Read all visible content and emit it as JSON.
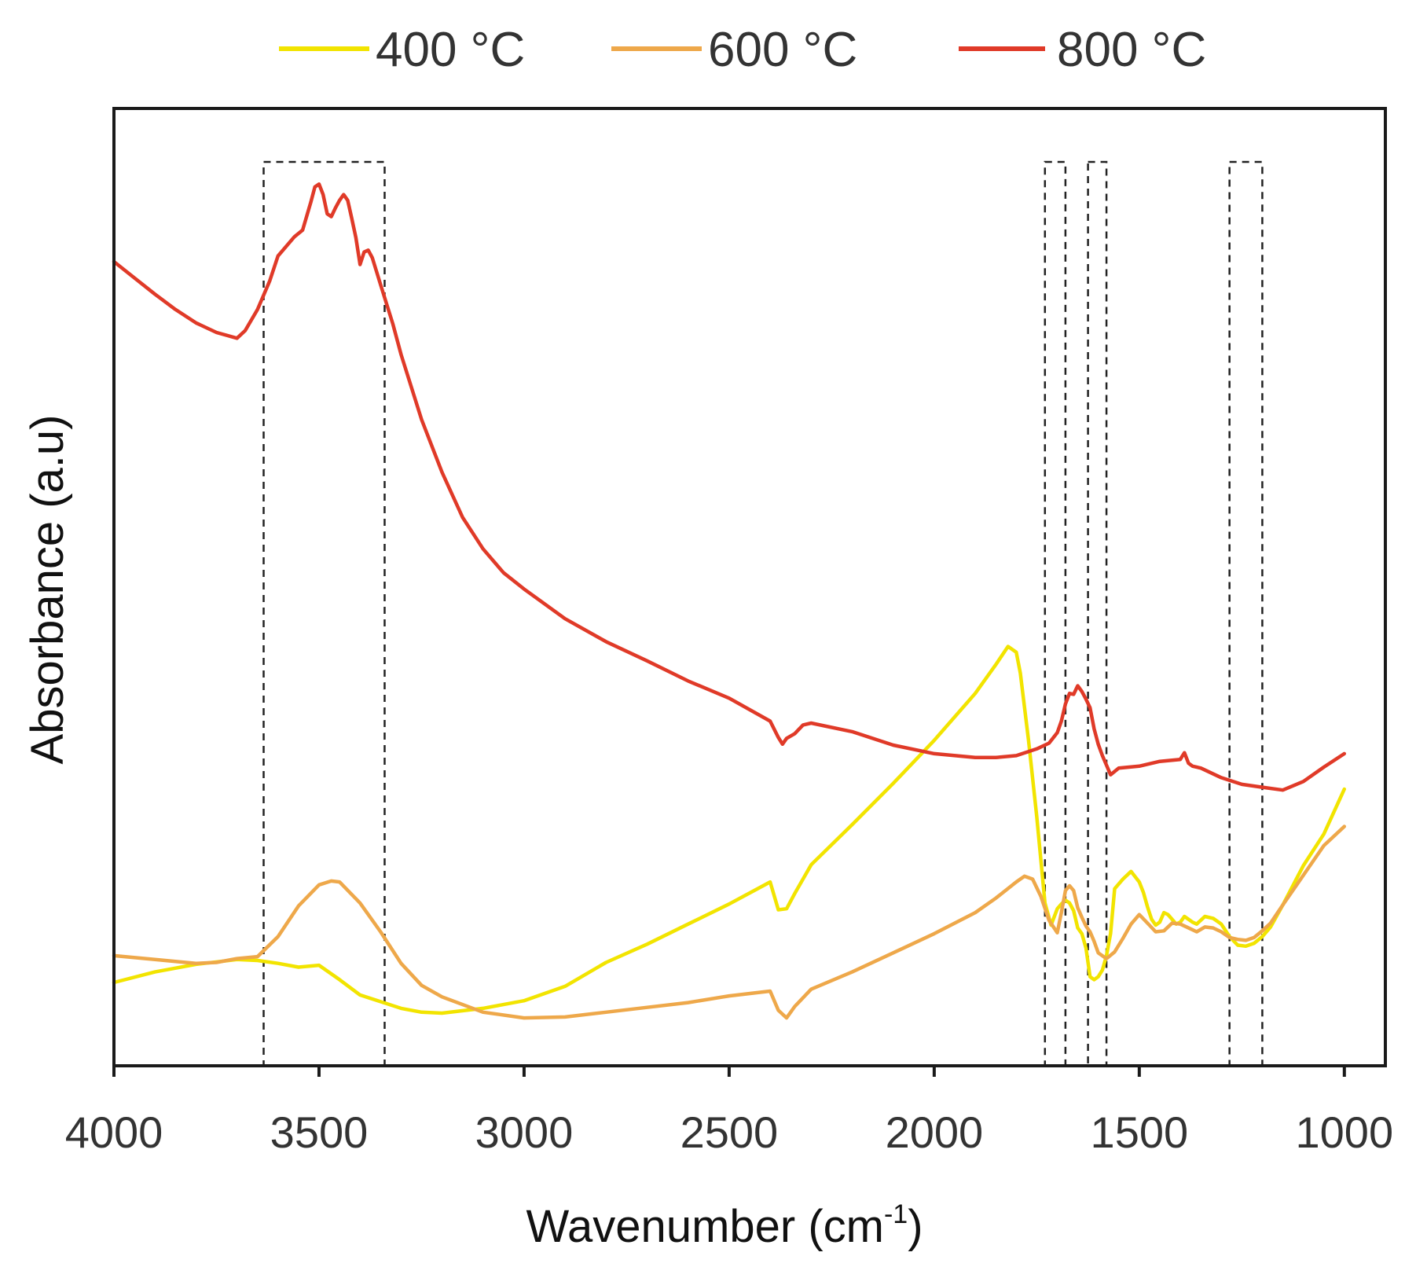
{
  "chart_data": {
    "type": "line",
    "xlabel": "Wavenumber (cm",
    "xlabel_sup": "-1",
    "xlabel_close": ")",
    "ylabel": "Absorbance (a.u)",
    "xlim": [
      4000,
      900
    ],
    "ylim": [
      0,
      100
    ],
    "x_ticks": [
      4000,
      3500,
      3000,
      2500,
      2000,
      1500,
      1000
    ],
    "x_tick_labels": [
      "4000",
      "3500",
      "3000",
      "2500",
      "2000",
      "1500",
      "1000"
    ],
    "y_ticks_visible": false,
    "legend_position": "top-center",
    "highlight_regions": [
      {
        "from": 3635,
        "to": 3340
      },
      {
        "from": 1730,
        "to": 1680
      },
      {
        "from": 1625,
        "to": 1580
      },
      {
        "from": 1280,
        "to": 1200
      }
    ],
    "series": [
      {
        "name": "400 °C",
        "color": "#f2e400",
        "x": [
          4000,
          3900,
          3800,
          3700,
          3650,
          3600,
          3550,
          3500,
          3450,
          3400,
          3350,
          3300,
          3250,
          3200,
          3100,
          3000,
          2900,
          2800,
          2700,
          2600,
          2500,
          2400,
          2380,
          2360,
          2340,
          2300,
          2200,
          2100,
          2000,
          1900,
          1850,
          1820,
          1800,
          1790,
          1770,
          1750,
          1730,
          1715,
          1700,
          1690,
          1680,
          1670,
          1660,
          1650,
          1640,
          1630,
          1620,
          1610,
          1600,
          1590,
          1580,
          1570,
          1560,
          1540,
          1520,
          1500,
          1490,
          1480,
          1470,
          1460,
          1450,
          1440,
          1430,
          1420,
          1410,
          1400,
          1390,
          1380,
          1370,
          1360,
          1340,
          1320,
          1300,
          1280,
          1260,
          1240,
          1220,
          1200,
          1180,
          1150,
          1100,
          1050,
          1000
        ],
        "values": [
          8.7,
          9.8,
          10.6,
          11.1,
          11.0,
          10.7,
          10.3,
          10.5,
          9.0,
          7.4,
          6.7,
          6.0,
          5.6,
          5.5,
          6.0,
          6.8,
          8.3,
          10.8,
          12.7,
          14.8,
          16.9,
          19.2,
          16.3,
          16.4,
          18.0,
          21.0,
          25.2,
          29.5,
          34.0,
          38.9,
          41.9,
          43.8,
          43.2,
          41.0,
          34.0,
          26.0,
          17.0,
          14.7,
          16.4,
          16.9,
          17.3,
          17.0,
          16.2,
          14.4,
          13.8,
          12.3,
          9.3,
          9.0,
          9.3,
          10.0,
          11.5,
          13.8,
          18.5,
          19.5,
          20.3,
          19.2,
          18.1,
          16.6,
          15.3,
          14.7,
          15.0,
          16.0,
          15.8,
          15.3,
          14.8,
          15.0,
          15.6,
          15.3,
          15.0,
          14.8,
          15.6,
          15.4,
          14.8,
          13.5,
          12.6,
          12.5,
          12.8,
          13.5,
          14.5,
          16.8,
          20.9,
          24.2,
          28.9
        ]
      },
      {
        "name": "600 °C",
        "color": "#eea84a",
        "x": [
          4000,
          3900,
          3800,
          3750,
          3700,
          3650,
          3600,
          3550,
          3500,
          3470,
          3450,
          3400,
          3350,
          3300,
          3250,
          3200,
          3100,
          3000,
          2900,
          2800,
          2700,
          2600,
          2500,
          2400,
          2380,
          2360,
          2340,
          2300,
          2200,
          2100,
          2000,
          1900,
          1850,
          1800,
          1780,
          1760,
          1740,
          1720,
          1700,
          1690,
          1680,
          1670,
          1660,
          1650,
          1640,
          1630,
          1620,
          1610,
          1600,
          1580,
          1560,
          1540,
          1520,
          1500,
          1480,
          1460,
          1440,
          1420,
          1400,
          1380,
          1360,
          1340,
          1320,
          1300,
          1280,
          1260,
          1240,
          1220,
          1200,
          1180,
          1150,
          1100,
          1050,
          1000
        ],
        "values": [
          11.5,
          11.1,
          10.7,
          10.8,
          11.2,
          11.4,
          13.5,
          16.7,
          18.9,
          19.3,
          19.2,
          17.0,
          14.0,
          10.7,
          8.4,
          7.2,
          5.6,
          5.0,
          5.1,
          5.6,
          6.1,
          6.6,
          7.3,
          7.8,
          5.8,
          5.0,
          6.2,
          8.0,
          9.8,
          11.8,
          13.8,
          16.0,
          17.5,
          19.2,
          19.8,
          19.5,
          17.7,
          15.2,
          13.9,
          16.0,
          18.3,
          18.8,
          18.3,
          16.5,
          15.5,
          14.6,
          14.0,
          13.0,
          11.8,
          11.2,
          11.9,
          13.3,
          14.8,
          15.8,
          14.9,
          14.0,
          14.1,
          14.9,
          14.8,
          14.4,
          14.0,
          14.5,
          14.4,
          14.0,
          13.4,
          13.2,
          13.1,
          13.4,
          14.1,
          14.9,
          16.8,
          19.9,
          23.0,
          25.0
        ]
      },
      {
        "name": "800 °C",
        "color": "#e03a28",
        "x": [
          4000,
          3950,
          3900,
          3850,
          3800,
          3750,
          3700,
          3680,
          3650,
          3620,
          3600,
          3560,
          3540,
          3520,
          3510,
          3500,
          3490,
          3480,
          3470,
          3460,
          3450,
          3440,
          3430,
          3420,
          3410,
          3400,
          3390,
          3380,
          3370,
          3350,
          3320,
          3300,
          3250,
          3200,
          3150,
          3100,
          3050,
          3000,
          2900,
          2800,
          2700,
          2600,
          2500,
          2400,
          2380,
          2370,
          2360,
          2340,
          2320,
          2300,
          2200,
          2100,
          2000,
          1900,
          1850,
          1800,
          1750,
          1720,
          1700,
          1690,
          1680,
          1670,
          1660,
          1650,
          1640,
          1630,
          1620,
          1610,
          1600,
          1590,
          1580,
          1570,
          1550,
          1500,
          1450,
          1400,
          1390,
          1380,
          1370,
          1350,
          1300,
          1250,
          1200,
          1150,
          1100,
          1050,
          1000
        ],
        "values": [
          84.0,
          82.3,
          80.6,
          79.0,
          77.6,
          76.6,
          76.0,
          76.8,
          79.0,
          82.0,
          84.6,
          86.6,
          87.3,
          90.2,
          91.8,
          92.1,
          91.0,
          89.0,
          88.7,
          89.6,
          90.4,
          91.0,
          90.4,
          88.5,
          86.5,
          83.7,
          85.0,
          85.2,
          84.4,
          81.6,
          77.5,
          74.3,
          67.5,
          62.0,
          57.3,
          54.0,
          51.5,
          49.8,
          46.7,
          44.3,
          42.3,
          40.2,
          38.4,
          36.0,
          34.3,
          33.6,
          34.2,
          34.7,
          35.6,
          35.8,
          34.9,
          33.5,
          32.6,
          32.2,
          32.2,
          32.4,
          33.1,
          33.7,
          34.8,
          36.0,
          37.8,
          38.9,
          38.8,
          39.7,
          39.1,
          38.3,
          37.4,
          35.2,
          33.6,
          32.4,
          31.4,
          30.4,
          31.1,
          31.3,
          31.8,
          32.0,
          32.7,
          31.6,
          31.3,
          31.1,
          30.1,
          29.4,
          29.1,
          28.8,
          29.7,
          31.2,
          32.6
        ]
      }
    ]
  }
}
